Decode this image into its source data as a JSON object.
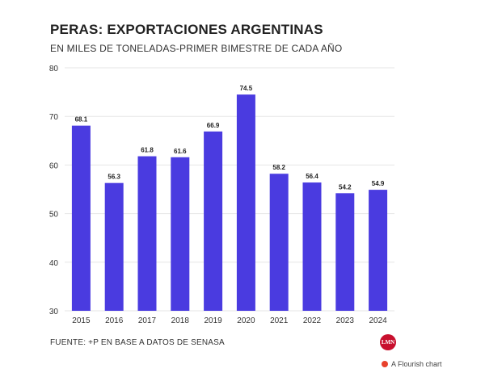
{
  "title": "PERAS: EXPORTACIONES ARGENTINAS",
  "subtitle": "EN MILES DE TONELADAS-PRIMER BIMESTRE DE CADA AÑO",
  "source": "FUENTE: +P EN BASE A DATOS DE SENASA",
  "logo_text": "LMN",
  "credit": "A Flourish chart",
  "colors": {
    "bar": "#4a3be0",
    "grid": "#e6e6e6",
    "logo": "#c8102e"
  },
  "chart_data": {
    "type": "bar",
    "categories": [
      "2015",
      "2016",
      "2017",
      "2018",
      "2019",
      "2020",
      "2021",
      "2022",
      "2023",
      "2024"
    ],
    "values": [
      68.1,
      56.3,
      61.8,
      61.6,
      66.9,
      74.5,
      58.2,
      56.4,
      54.2,
      54.9
    ],
    "ylim": [
      30,
      80
    ],
    "yticks": [
      30,
      40,
      50,
      60,
      70,
      80
    ],
    "grid": true,
    "xlabel": "",
    "ylabel": ""
  }
}
